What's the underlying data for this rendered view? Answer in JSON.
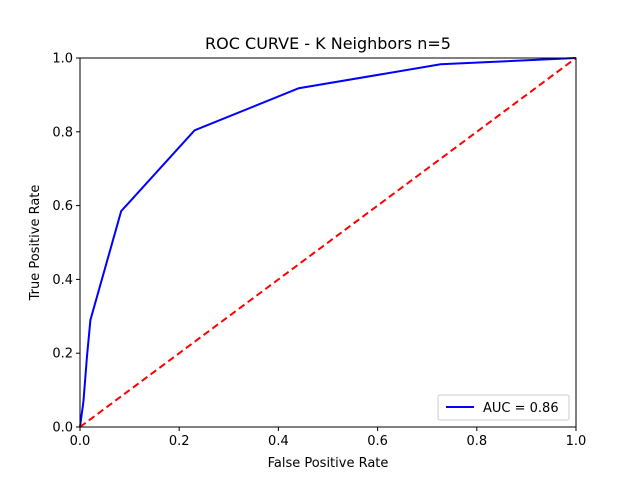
{
  "chart_data": {
    "type": "line",
    "title": "ROC CURVE - K Neighbors n=5",
    "xlabel": "False Positive Rate",
    "ylabel": "True Positive Rate",
    "xlim": [
      0,
      1
    ],
    "ylim": [
      0,
      1
    ],
    "xticks": [
      "0.0",
      "0.2",
      "0.4",
      "0.6",
      "0.8",
      "1.0"
    ],
    "yticks": [
      "0.0",
      "0.2",
      "0.4",
      "0.6",
      "0.8",
      "1.0"
    ],
    "grid": false,
    "legend_position": "lower-right",
    "series": [
      {
        "name": "AUC = 0.86",
        "color": "#0000ff",
        "style": "solid",
        "x": [
          0.0,
          0.007,
          0.014,
          0.021,
          0.083,
          0.231,
          0.441,
          0.727,
          1.0
        ],
        "y": [
          0.0,
          0.07,
          0.19,
          0.29,
          0.585,
          0.804,
          0.918,
          0.983,
          1.0
        ]
      },
      {
        "color": "#ff0000",
        "style": "dashed",
        "x": [
          0,
          1
        ],
        "y": [
          0,
          1
        ]
      }
    ]
  }
}
